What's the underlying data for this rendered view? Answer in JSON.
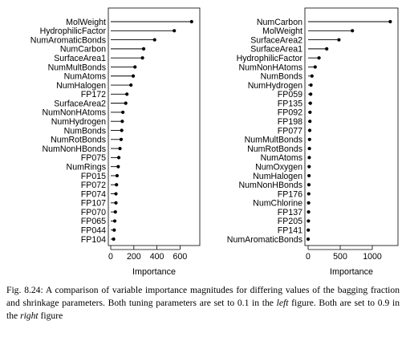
{
  "chart_data": [
    {
      "type": "dot",
      "xlabel": "Importance",
      "xlim": [
        0,
        750
      ],
      "xticks": [
        0,
        200,
        400,
        600
      ],
      "categories": [
        "MolWeight",
        "HydrophilicFactor",
        "NumAromaticBonds",
        "NumCarbon",
        "SurfaceArea1",
        "NumMultBonds",
        "NumAtoms",
        "NumHalogen",
        "FP172",
        "SurfaceArea2",
        "NumNonHAtoms",
        "NumHydrogen",
        "NumBonds",
        "NumRotBonds",
        "NumNonHBonds",
        "FP075",
        "NumRings",
        "FP015",
        "FP072",
        "FP074",
        "FP107",
        "FP070",
        "FP065",
        "FP044",
        "FP104"
      ],
      "values": [
        700,
        550,
        380,
        285,
        275,
        210,
        195,
        175,
        140,
        130,
        105,
        100,
        95,
        90,
        80,
        70,
        65,
        55,
        50,
        45,
        45,
        40,
        35,
        30,
        25
      ]
    },
    {
      "type": "dot",
      "xlabel": "Importance",
      "xlim": [
        0,
        1350
      ],
      "xticks": [
        0,
        500,
        1000
      ],
      "categories": [
        "NumCarbon",
        "MolWeight",
        "SurfaceArea2",
        "SurfaceArea1",
        "HydrophilicFactor",
        "NumNonHAtoms",
        "NumBonds",
        "NumHydrogen",
        "FP059",
        "FP135",
        "FP092",
        "FP198",
        "FP077",
        "NumMultBonds",
        "NumRotBonds",
        "NumAtoms",
        "NumOxygen",
        "NumHalogen",
        "NumNonHBonds",
        "FP176",
        "NumChlorine",
        "FP137",
        "FP205",
        "FP141",
        "NumAromaticBonds"
      ],
      "values": [
        1280,
        690,
        480,
        290,
        170,
        110,
        60,
        45,
        40,
        35,
        30,
        28,
        25,
        22,
        20,
        18,
        16,
        14,
        12,
        10,
        8,
        7,
        5,
        3,
        1
      ]
    }
  ],
  "caption": {
    "fig_label": "Fig. 8.24:",
    "text_1": "A comparison of variable importance magnitudes for differing values of the bagging fraction and shrinkage parameters. Both tuning parameters are set to 0.1 in the",
    "left_word": "left",
    "text_2": "figure. Both are set to 0.9 in the",
    "right_word": "right",
    "text_3": "figure"
  }
}
